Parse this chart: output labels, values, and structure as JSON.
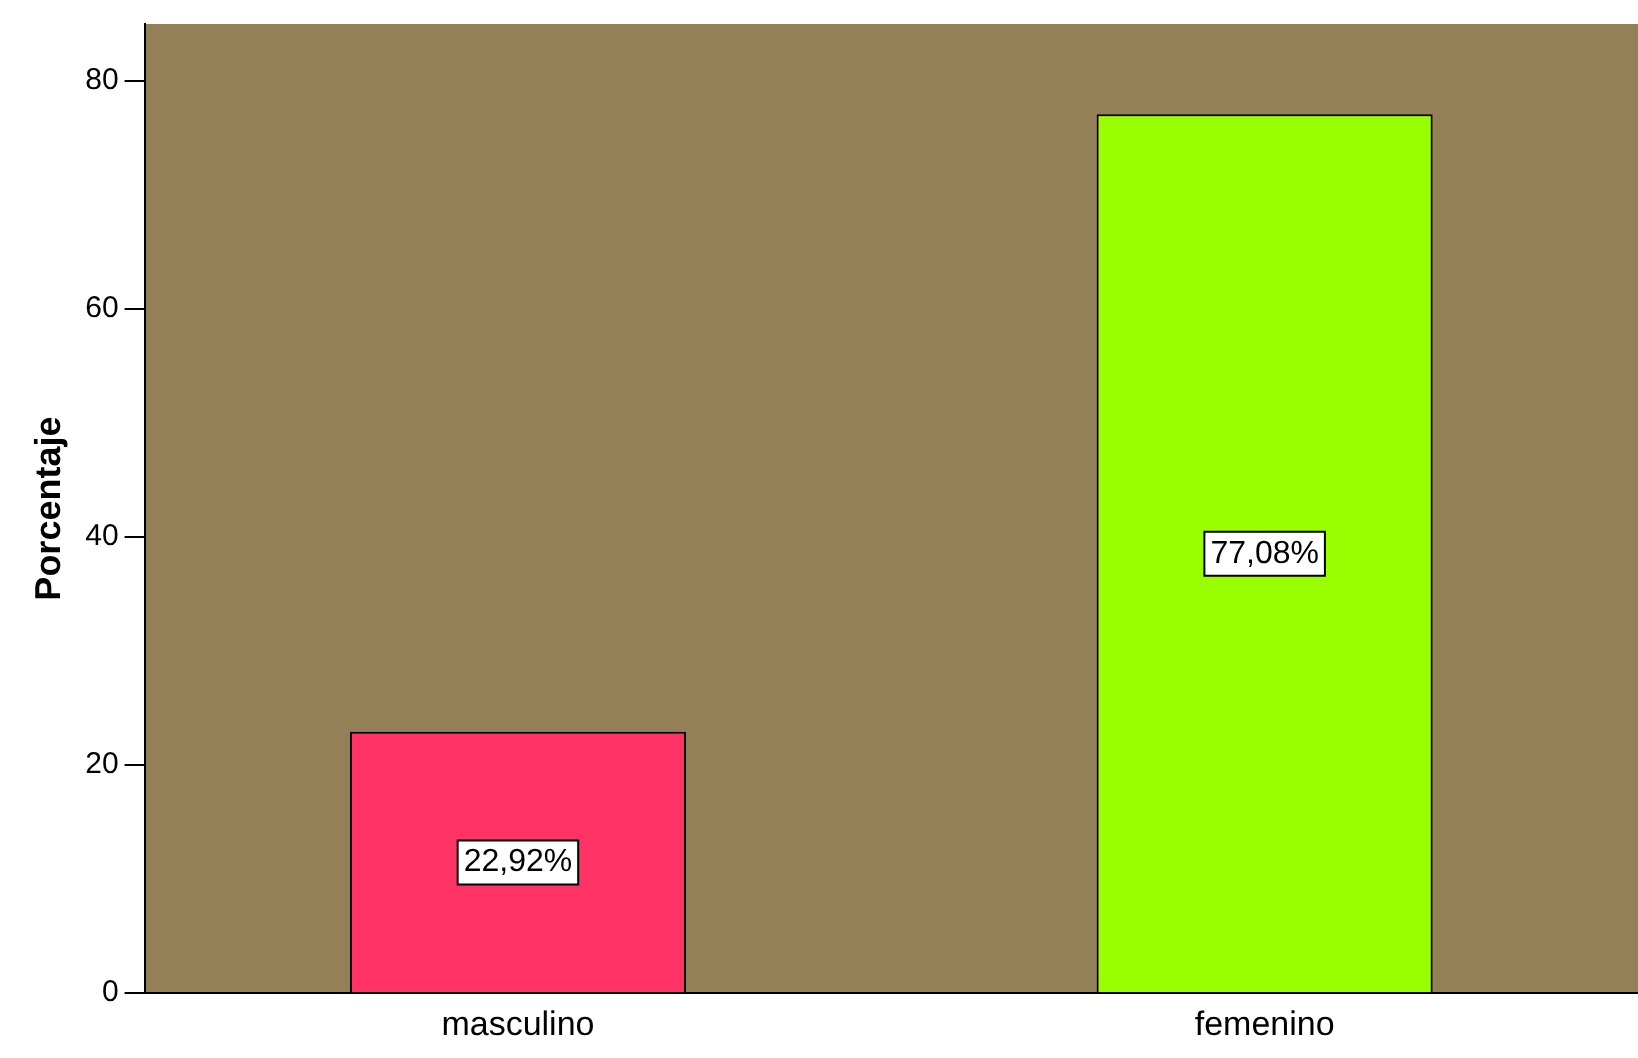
{
  "chart_data": {
    "type": "bar",
    "ylabel": "Porcentaje",
    "categories": [
      "masculino",
      "femenino"
    ],
    "values": [
      22.92,
      77.08
    ],
    "colors": [
      "#ff3366",
      "#99ff00"
    ],
    "value_labels": [
      "22,92%",
      "77,08%"
    ],
    "ylim": [
      0,
      85
    ],
    "yticks": [
      0,
      20,
      40,
      60,
      80
    ],
    "grid": false,
    "legend": false
  }
}
